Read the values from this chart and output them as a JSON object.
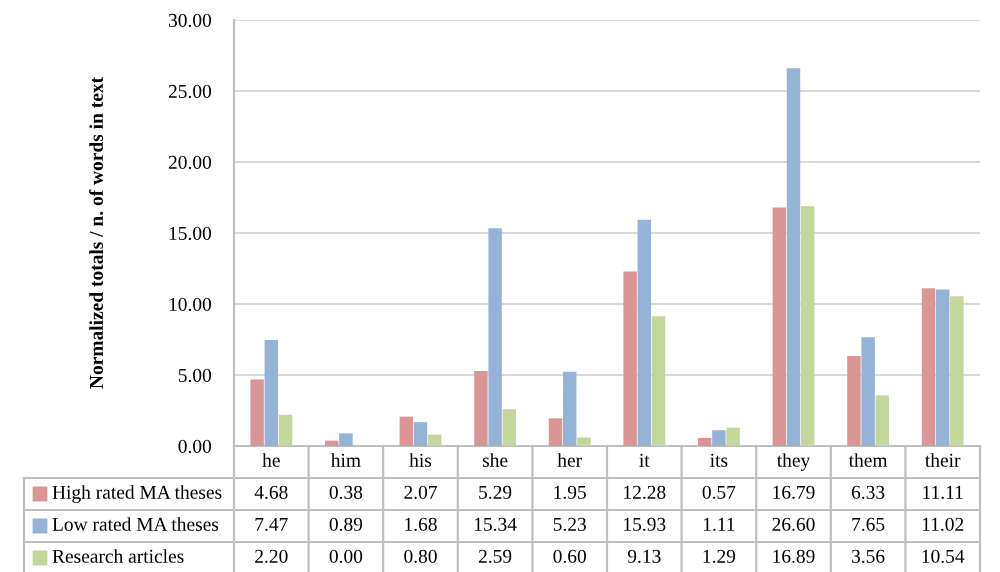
{
  "chart_data": {
    "type": "bar",
    "ylabel": "Normalized totals / n. of words in text",
    "categories": [
      "he",
      "him",
      "his",
      "she",
      "her",
      "it",
      "its",
      "they",
      "them",
      "their"
    ],
    "series": [
      {
        "name": "High rated MA theses",
        "color": "#d99694",
        "values": [
          4.68,
          0.38,
          2.07,
          5.29,
          1.95,
          12.28,
          0.57,
          16.79,
          6.33,
          11.11
        ],
        "value_labels": [
          "4.68",
          "0.38",
          "2.07",
          "5.29",
          "1.95",
          "12.28",
          "0.57",
          "16.79",
          "6.33",
          "11.11"
        ]
      },
      {
        "name": "Low rated MA theses",
        "color": "#95b3d7",
        "values": [
          7.47,
          0.89,
          1.68,
          15.34,
          5.23,
          15.93,
          1.11,
          26.6,
          7.65,
          11.02
        ],
        "value_labels": [
          "7.47",
          "0.89",
          "1.68",
          "15.34",
          "5.23",
          "15.93",
          "1.11",
          "26.60",
          "7.65",
          "11.02"
        ]
      },
      {
        "name": "Research articles",
        "color": "#c3d69b",
        "values": [
          2.2,
          0.0,
          0.8,
          2.59,
          0.6,
          9.13,
          1.29,
          16.89,
          3.56,
          10.54
        ],
        "value_labels": [
          "2.20",
          "0.00",
          "0.80",
          "2.59",
          "0.60",
          "9.13",
          "1.29",
          "16.89",
          "3.56",
          "10.54"
        ]
      }
    ],
    "ylim": [
      0,
      30
    ],
    "yticks": [
      {
        "value": 0,
        "label": "0.00"
      },
      {
        "value": 5,
        "label": "5.00"
      },
      {
        "value": 10,
        "label": "10.00"
      },
      {
        "value": 15,
        "label": "15.00"
      },
      {
        "value": 20,
        "label": "20.00"
      },
      {
        "value": 25,
        "label": "25.00"
      },
      {
        "value": 30,
        "label": "30.00"
      }
    ],
    "grid": "y",
    "legend": "bottom"
  }
}
